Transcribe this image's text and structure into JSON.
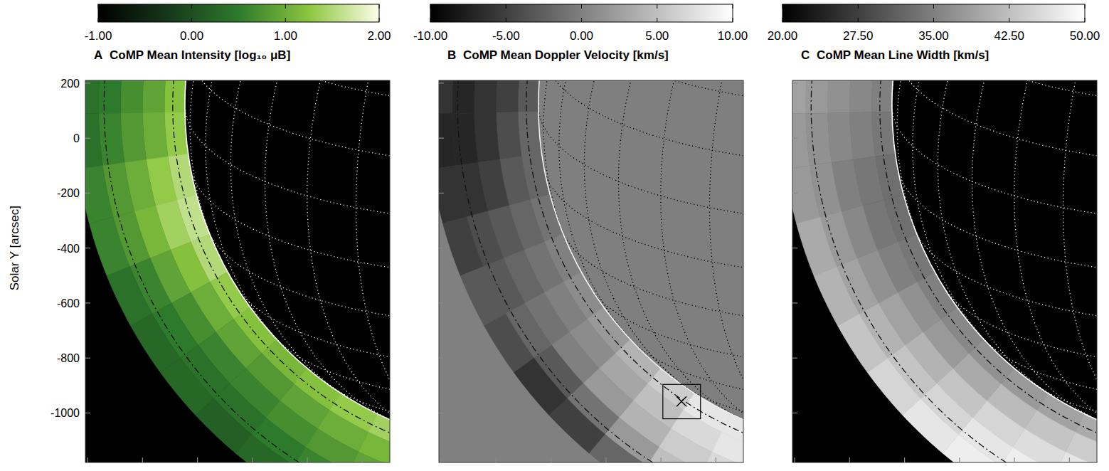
{
  "chart_data": [
    {
      "type": "heatmap",
      "panel_label": "A",
      "title": "CoMP Mean Intensity [log₁₀ μB]",
      "y_label": "Solar Y [arcsec]",
      "xlim": [
        -1608,
        -500
      ],
      "ylim": [
        -1180,
        210
      ],
      "xticks": [
        -1600,
        -1400,
        -1200,
        -1000,
        -800,
        -600
      ],
      "yticks": [
        200,
        0,
        -200,
        -400,
        -600,
        -800,
        -1000
      ],
      "tick_labels": "y",
      "colors": [
        "#000000",
        "#16381a",
        "#2e7a2c",
        "#8cc63f",
        "#fdfde8"
      ],
      "colorbar": {
        "range": [
          -1,
          2
        ],
        "ticks": [
          {
            "value": -1,
            "label": "-1.00"
          },
          {
            "value": 0,
            "label": "0.00"
          },
          {
            "value": 1,
            "label": "1.00"
          },
          {
            "value": 2,
            "label": "2.00"
          }
        ]
      },
      "limb": {
        "center": [
          0,
          117
        ],
        "radius": 1246,
        "circles": [
          1290,
          1540
        ]
      },
      "position_angles": [
        84,
        91,
        98,
        105,
        112,
        119,
        126,
        133,
        140,
        147,
        154,
        161,
        168
      ],
      "radii": [
        1246,
        1320,
        1400,
        1480,
        1560,
        1650
      ],
      "cells": [
        [
          1.2,
          0.9,
          0.7,
          0.5,
          0.4
        ],
        [
          1.3,
          1.0,
          0.8,
          0.6,
          0.4
        ],
        [
          1.5,
          1.3,
          1.0,
          0.8,
          0.6
        ],
        [
          1.6,
          1.4,
          1.1,
          0.8,
          0.6
        ],
        [
          1.5,
          1.2,
          0.9,
          0.6,
          0.4
        ],
        [
          1.3,
          1.0,
          0.7,
          0.5,
          0.3
        ],
        [
          1.2,
          0.9,
          0.6,
          0.4,
          0.3
        ],
        [
          1.1,
          0.8,
          0.6,
          0.4,
          0.2
        ],
        [
          1.2,
          0.9,
          0.7,
          0.5,
          0.3
        ],
        [
          1.3,
          1.0,
          0.8,
          0.6,
          0.4
        ],
        [
          1.4,
          1.1,
          0.9,
          0.7,
          0.5
        ],
        [
          1.4,
          1.1,
          0.9,
          0.7,
          0.5
        ]
      ]
    },
    {
      "type": "heatmap",
      "panel_label": "B",
      "title": "CoMP Mean Doppler Velocity [km/s]",
      "xlim": [
        -1608,
        -500
      ],
      "ylim": [
        -1180,
        210
      ],
      "xticks": [
        -1600,
        -1400,
        -1200,
        -1000,
        -800,
        -600
      ],
      "yticks": [
        200,
        0,
        -200,
        -400,
        -600,
        -800,
        -1000
      ],
      "tick_labels": false,
      "colors": [
        "#000000",
        "#ffffff"
      ],
      "colorbar": {
        "range": [
          -10,
          10
        ],
        "ticks": [
          {
            "value": -10,
            "label": "-10.00"
          },
          {
            "value": -5,
            "label": "-5.00"
          },
          {
            "value": 0,
            "label": "0.00"
          },
          {
            "value": 5,
            "label": "5.00"
          },
          {
            "value": 10,
            "label": "10.00"
          }
        ]
      },
      "limb": {
        "center": [
          0,
          117
        ],
        "radius": 1246,
        "circles": [
          1290,
          1540
        ]
      },
      "position_angles": [
        84,
        91,
        98,
        105,
        112,
        119,
        126,
        133,
        140,
        147,
        154,
        161,
        168
      ],
      "radii": [
        1246,
        1320,
        1400,
        1480,
        1560,
        1650
      ],
      "cells": [
        [
          -3,
          -5,
          -6,
          -7,
          -6
        ],
        [
          -2,
          -4,
          -6,
          -7,
          -7
        ],
        [
          -2,
          -3,
          -5,
          -6,
          -6
        ],
        [
          -1,
          -2,
          -3,
          -4,
          -5
        ],
        [
          0,
          -1,
          -2,
          -3,
          -3
        ],
        [
          1,
          0,
          -1,
          -2,
          -4
        ],
        [
          2,
          1,
          0,
          -3,
          -6
        ],
        [
          4,
          3,
          2,
          -1,
          -5
        ],
        [
          6,
          5,
          4,
          2,
          -2
        ],
        [
          8,
          7,
          6,
          5,
          3
        ],
        [
          8,
          8,
          7,
          6,
          5
        ],
        [
          7,
          7,
          6,
          6,
          5
        ]
      ],
      "annotation": {
        "box": {
          "x": [
            -793,
            -656
          ],
          "y": [
            -1021,
            -896
          ]
        },
        "marker": [
          -725,
          -958
        ]
      }
    },
    {
      "type": "heatmap",
      "panel_label": "C",
      "title": "CoMP Mean Line Width [km/s]",
      "xlim": [
        -1608,
        -500
      ],
      "ylim": [
        -1180,
        210
      ],
      "xticks": [
        -1600,
        -1400,
        -1200,
        -1000,
        -800,
        -600
      ],
      "yticks": [
        200,
        0,
        -200,
        -400,
        -600,
        -800,
        -1000
      ],
      "tick_labels": false,
      "colors": [
        "#000000",
        "#ffffff"
      ],
      "colorbar": {
        "range": [
          20,
          50
        ],
        "ticks": [
          {
            "value": 20,
            "label": "20.00"
          },
          {
            "value": 27.5,
            "label": "27.50"
          },
          {
            "value": 35,
            "label": "35.00"
          },
          {
            "value": 42.5,
            "label": "42.50"
          },
          {
            "value": 50,
            "label": "50.00"
          }
        ]
      },
      "limb": {
        "center": [
          0,
          117
        ],
        "radius": 1246,
        "circles": [
          1290,
          1540
        ]
      },
      "position_angles": [
        84,
        91,
        98,
        105,
        112,
        119,
        126,
        133,
        140,
        147,
        154,
        161,
        168
      ],
      "radii": [
        1246,
        1320,
        1400,
        1480,
        1560,
        1650
      ],
      "cells": [
        [
          35,
          36,
          37,
          38,
          39
        ],
        [
          34,
          35,
          36,
          37,
          38
        ],
        [
          33,
          34,
          35,
          37,
          38
        ],
        [
          33,
          34,
          36,
          38,
          40
        ],
        [
          34,
          35,
          37,
          39,
          41
        ],
        [
          35,
          37,
          39,
          41,
          43
        ],
        [
          36,
          38,
          41,
          43,
          45
        ],
        [
          37,
          40,
          43,
          45,
          47
        ],
        [
          38,
          42,
          45,
          47,
          48
        ],
        [
          39,
          43,
          46,
          48,
          49
        ],
        [
          40,
          44,
          47,
          49,
          50
        ],
        [
          40,
          44,
          47,
          49,
          50
        ]
      ]
    }
  ]
}
